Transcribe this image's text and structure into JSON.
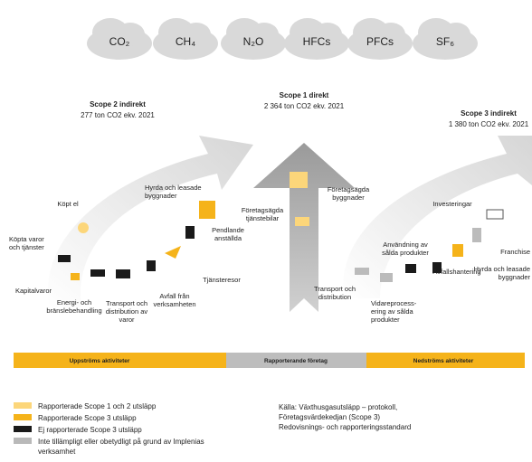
{
  "gases": [
    "CO₂",
    "CH₄",
    "N₂O",
    "HFCs",
    "PFCs",
    "SF₆"
  ],
  "scopes": [
    {
      "title": "Scope 2 indirekt",
      "subtitle": "277 ton CO2 ekv. 2021"
    },
    {
      "title": "Scope 1 direkt",
      "subtitle": "2 364 ton CO2 ekv. 2021"
    },
    {
      "title": "Scope 3 indirekt",
      "subtitle": "1 380 ton CO2 ekv. 2021"
    }
  ],
  "items": [
    {
      "lines": [
        "Köpt el"
      ]
    },
    {
      "lines": [
        "Hyrda och leasade",
        "byggnader"
      ]
    },
    {
      "lines": [
        "Köpta varor",
        "och tjänster"
      ]
    },
    {
      "lines": [
        "Kapitalvaror"
      ]
    },
    {
      "lines": [
        "Energi- och",
        "bränslebehandling"
      ]
    },
    {
      "lines": [
        "Transport och",
        "distribution av",
        "varor"
      ]
    },
    {
      "lines": [
        "Avfall från",
        "verksamheten"
      ]
    },
    {
      "lines": [
        "Tjänsteresor"
      ]
    },
    {
      "lines": [
        "Pendlande",
        "anställda"
      ]
    },
    {
      "lines": [
        "Företagsägda",
        "tjänstebilar"
      ]
    },
    {
      "lines": [
        "Företagsägda",
        "byggnader"
      ]
    },
    {
      "lines": [
        "Investeringar"
      ]
    },
    {
      "lines": [
        "Franchise"
      ]
    },
    {
      "lines": [
        "Hyrda och leasade",
        "byggnader"
      ]
    },
    {
      "lines": [
        "Användning av",
        "sålda produkter"
      ]
    },
    {
      "lines": [
        "Avfallshantering"
      ]
    },
    {
      "lines": [
        "Vidareprocess-",
        "ering av sålda",
        "produkter"
      ]
    },
    {
      "lines": [
        "Transport och",
        "distribution"
      ]
    }
  ],
  "bar": [
    "Uppströms aktiviteter",
    "Rapporterande företag",
    "Nedströms aktiviteter"
  ],
  "legend": [
    {
      "lines": [
        "Rapporterade Scope 1 och 2 utsläpp"
      ]
    },
    {
      "lines": [
        "Rapporterade Scope 3 utsläpp"
      ]
    },
    {
      "lines": [
        "Ej rapporterade Scope 3 utsläpp"
      ]
    },
    {
      "lines": [
        "Inte tillämpligt eller obetydligt på grund av Implenias",
        "verksamhet"
      ]
    }
  ],
  "source": [
    "Källa: Växthusgasutsläpp – protokoll,",
    "Företagsvärdekedjan (Scope 3)",
    "Redovisnings- och rapporteringsstandard"
  ]
}
